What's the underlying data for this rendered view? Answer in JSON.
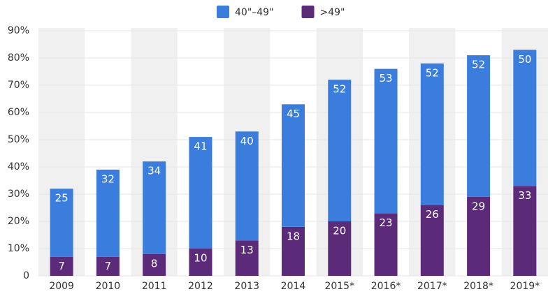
{
  "chart_data": {
    "type": "stacked_bar",
    "categories": [
      "2009",
      "2010",
      "2011",
      "2012",
      "2013",
      "2014",
      "2015*",
      "2016*",
      "2017*",
      "2018*",
      "2019*"
    ],
    "series": [
      {
        "name": ">49\"",
        "color": "#5b2a78",
        "values": [
          7,
          7,
          8,
          10,
          13,
          18,
          20,
          23,
          26,
          29,
          33
        ]
      },
      {
        "name": "40\"–49\"",
        "color": "#3b7ddd",
        "values": [
          25,
          32,
          34,
          41,
          40,
          45,
          52,
          53,
          52,
          52,
          50
        ]
      }
    ],
    "ylim": [
      0,
      90
    ],
    "yticks": [
      0,
      {
        "value": 10,
        "label": "10%"
      },
      {
        "value": 20,
        "label": "20%"
      },
      {
        "value": 30,
        "label": "30%"
      },
      {
        "value": 40,
        "label": "40%"
      },
      {
        "value": 50,
        "label": "50%"
      },
      {
        "value": 60,
        "label": "60%"
      },
      {
        "value": 70,
        "label": "70%"
      },
      {
        "value": 80,
        "label": "80%"
      },
      {
        "value": 90,
        "label": "90%"
      }
    ],
    "grid": true,
    "legend": "top"
  }
}
